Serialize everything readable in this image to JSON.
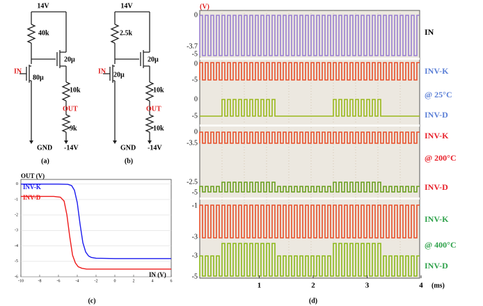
{
  "panel_a": {
    "supply": "14V",
    "r_top": "40k",
    "w_load": "20µ",
    "input": "IN",
    "w_drive": "80µ",
    "r_mid": "10k",
    "output": "OUT",
    "r_bot": "9k",
    "ground": "GND",
    "neg_supply": "-14V",
    "caption": "(a)"
  },
  "panel_b": {
    "supply": "14V",
    "r_top": "2.5k",
    "w_load": "20µ",
    "input": "IN",
    "w_drive": "20µ",
    "r_mid": "10k",
    "output": "OUT",
    "r_bot": "10k",
    "ground": "GND",
    "neg_supply": "-14V",
    "caption": "(b)"
  },
  "chart_data": [
    {
      "type": "line",
      "caption": "(c)",
      "xlabel": "IN (V)",
      "ylabel": "OUT (V)",
      "xlim": [
        -10,
        6
      ],
      "ylim": [
        -6,
        0.3
      ],
      "xticks": [
        -10,
        -8,
        -6,
        -4,
        -2,
        0,
        2,
        4,
        6
      ],
      "yticks": [
        0,
        -1,
        -2,
        -3,
        -4,
        -5,
        -6
      ],
      "series": [
        {
          "name": "INV-K",
          "color": "#1a1aee",
          "x": [
            -10,
            -6,
            -5,
            -4.6,
            -4.3,
            -4,
            -3.7,
            -3.4,
            -3.1,
            -2.8,
            -2.5,
            -2,
            0,
            6
          ],
          "values": [
            0,
            0,
            -0.02,
            -0.1,
            -0.4,
            -1.2,
            -2.6,
            -3.8,
            -4.4,
            -4.65,
            -4.75,
            -4.8,
            -4.82,
            -4.82
          ]
        },
        {
          "name": "INV-D",
          "color": "#ee1a1a",
          "x": [
            -10,
            -6.5,
            -5.8,
            -5.4,
            -5.1,
            -4.8,
            -4.5,
            -4.2,
            -3.9,
            -3.5,
            -3,
            0,
            6
          ],
          "values": [
            -0.8,
            -0.8,
            -0.85,
            -1.1,
            -2,
            -3.4,
            -4.6,
            -5.1,
            -5.35,
            -5.45,
            -5.5,
            -5.5,
            -5.5
          ]
        }
      ]
    },
    {
      "type": "oscilloscope",
      "caption": "(d)",
      "ylabel": "(V)",
      "xlabel": "(ms)",
      "xlim": [
        0,
        4
      ],
      "xticks": [
        1,
        2,
        3,
        4
      ],
      "level_labels": [
        0,
        -3.7,
        -5,
        0,
        -5,
        0,
        -5,
        0,
        -3.5,
        -2.5,
        -5,
        -1,
        -3,
        -3,
        -5
      ],
      "side_labels": [
        "IN",
        "INV-K",
        "@ 25°C",
        "INV-D",
        "INV-K",
        "@ 200°C",
        "INV-D",
        "INV-K",
        "@ 400°C",
        "INV-D"
      ]
    }
  ]
}
